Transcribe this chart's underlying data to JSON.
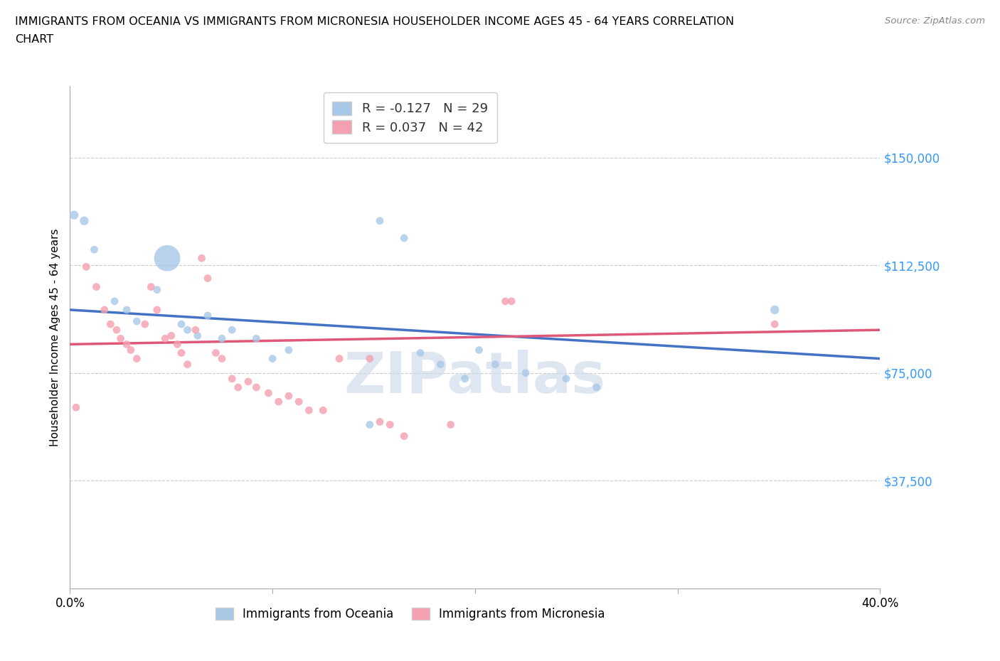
{
  "title_line1": "IMMIGRANTS FROM OCEANIA VS IMMIGRANTS FROM MICRONESIA HOUSEHOLDER INCOME AGES 45 - 64 YEARS CORRELATION",
  "title_line2": "CHART",
  "source": "Source: ZipAtlas.com",
  "ylabel": "Householder Income Ages 45 - 64 years",
  "legend_label1": "Immigrants from Oceania",
  "legend_label2": "Immigrants from Micronesia",
  "R1": -0.127,
  "N1": 29,
  "R2": 0.037,
  "N2": 42,
  "color1": "#a8c8e8",
  "color2": "#f4a0b0",
  "trendline_color1": "#4472c4",
  "trendline_color2": "#e05878",
  "xmin": 0.0,
  "xmax": 0.4,
  "ymin": 0,
  "ymax": 175000,
  "yticks": [
    37500,
    75000,
    112500,
    150000
  ],
  "ytick_labels": [
    "$37,500",
    "$75,000",
    "$112,500",
    "$150,000"
  ],
  "watermark_text": "ZIPatlas",
  "scatter_oceania_x": [
    0.002,
    0.007,
    0.012,
    0.022,
    0.028,
    0.033,
    0.043,
    0.048,
    0.055,
    0.058,
    0.063,
    0.068,
    0.075,
    0.08,
    0.092,
    0.1,
    0.108,
    0.148,
    0.153,
    0.165,
    0.173,
    0.183,
    0.195,
    0.202,
    0.21,
    0.225,
    0.245,
    0.26,
    0.348
  ],
  "scatter_oceania_y": [
    130000,
    128000,
    118000,
    100000,
    97000,
    93000,
    104000,
    115000,
    92000,
    90000,
    88000,
    95000,
    87000,
    90000,
    87000,
    80000,
    83000,
    57000,
    128000,
    122000,
    82000,
    78000,
    73000,
    83000,
    78000,
    75000,
    73000,
    70000,
    97000
  ],
  "scatter_oceania_size": [
    80,
    80,
    60,
    60,
    60,
    60,
    60,
    700,
    60,
    60,
    60,
    60,
    60,
    60,
    60,
    60,
    60,
    60,
    60,
    60,
    60,
    60,
    60,
    60,
    60,
    60,
    60,
    60,
    80
  ],
  "scatter_micronesia_x": [
    0.003,
    0.008,
    0.013,
    0.017,
    0.02,
    0.023,
    0.025,
    0.028,
    0.03,
    0.033,
    0.037,
    0.04,
    0.043,
    0.047,
    0.05,
    0.053,
    0.055,
    0.058,
    0.062,
    0.065,
    0.068,
    0.072,
    0.075,
    0.08,
    0.083,
    0.088,
    0.092,
    0.098,
    0.103,
    0.108,
    0.113,
    0.118,
    0.125,
    0.133,
    0.148,
    0.153,
    0.158,
    0.165,
    0.188,
    0.215,
    0.218,
    0.348
  ],
  "scatter_micronesia_y": [
    63000,
    112000,
    105000,
    97000,
    92000,
    90000,
    87000,
    85000,
    83000,
    80000,
    92000,
    105000,
    97000,
    87000,
    88000,
    85000,
    82000,
    78000,
    90000,
    115000,
    108000,
    82000,
    80000,
    73000,
    70000,
    72000,
    70000,
    68000,
    65000,
    67000,
    65000,
    62000,
    62000,
    80000,
    80000,
    58000,
    57000,
    53000,
    57000,
    100000,
    100000,
    92000
  ],
  "scatter_micronesia_size": [
    60,
    60,
    60,
    60,
    60,
    60,
    60,
    60,
    60,
    60,
    60,
    60,
    60,
    60,
    60,
    60,
    60,
    60,
    60,
    60,
    60,
    60,
    60,
    60,
    60,
    60,
    60,
    60,
    60,
    60,
    60,
    60,
    60,
    60,
    60,
    60,
    60,
    60,
    60,
    60,
    60,
    60
  ],
  "trend1_x0": 0.0,
  "trend1_x1": 0.4,
  "trend1_y0": 97000,
  "trend1_y1": 80000,
  "trend2_x0": 0.0,
  "trend2_x1": 0.4,
  "trend2_y0": 85000,
  "trend2_y1": 90000
}
